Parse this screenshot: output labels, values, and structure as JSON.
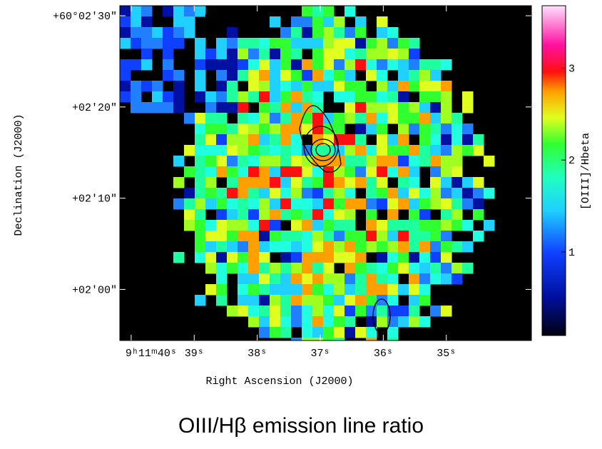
{
  "chart_data": {
    "type": "image",
    "xlabel": "Right Ascension (J2000)",
    "ylabel": "Declination (J2000)",
    "xlim": [
      40.18,
      33.65
    ],
    "xticks": [
      {
        "value": 40,
        "label": "9ʰ11ᵐ40ˢ"
      },
      {
        "value": 39,
        "label": "39ˢ"
      },
      {
        "value": 38,
        "label": "38ˢ"
      },
      {
        "value": 37,
        "label": "37ˢ"
      },
      {
        "value": 36,
        "label": "36ˢ"
      },
      {
        "value": 35,
        "label": "35ˢ"
      }
    ],
    "ylim": [
      -5.6,
      31.1
    ],
    "yticks": [
      {
        "value": 30,
        "label": "+60°02′30″"
      },
      {
        "value": 20,
        "label": "+02′20″"
      },
      {
        "value": 10,
        "label": "+02′10″"
      },
      {
        "value": 0,
        "label": "+02′00″"
      }
    ],
    "colorbar_label": "[OIII]/Hbeta",
    "clim": [
      0.09,
      3.68
    ],
    "cticks": [
      1,
      2,
      3
    ],
    "caption": "OIII/Hβ emission line ratio"
  }
}
